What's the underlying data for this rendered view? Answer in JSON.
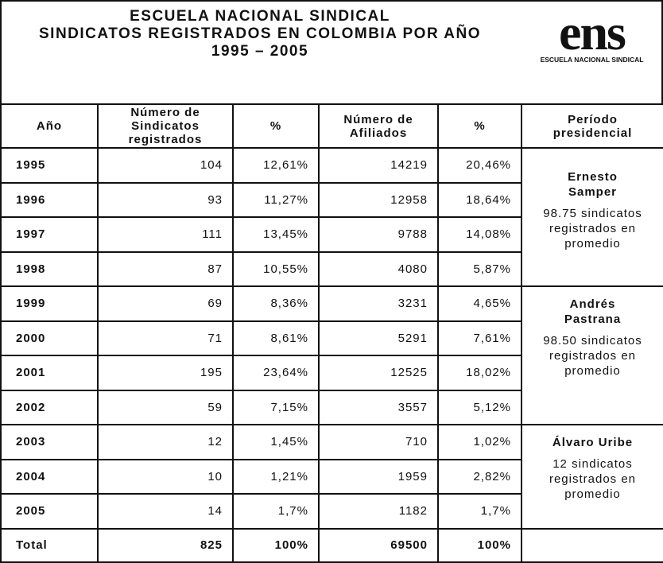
{
  "header": {
    "title": [
      "ESCUELA NACIONAL SINDICAL",
      "SINDICATOS REGISTRADOS EN COLOMBIA POR AÑO",
      "1995 – 2005"
    ],
    "logo": {
      "mark": "ens",
      "text": "ESCUELA NACIONAL SINDICAL"
    }
  },
  "table": {
    "columns": [
      [
        "Año"
      ],
      [
        "Número de",
        "Sindicatos",
        "registrados"
      ],
      [
        "%"
      ],
      [
        "Número de",
        "Afiliados"
      ],
      [
        "%"
      ],
      [
        "Período",
        "presidencial"
      ]
    ],
    "rows": [
      [
        "1995",
        "104",
        "12,61%",
        "14219",
        "20,46%"
      ],
      [
        "1996",
        "93",
        "11,27%",
        "12958",
        "18,64%"
      ],
      [
        "1997",
        "111",
        "13,45%",
        "9788",
        "14,08%"
      ],
      [
        "1998",
        "87",
        "10,55%",
        "4080",
        "5,87%"
      ],
      [
        "1999",
        "69",
        "8,36%",
        "3231",
        "4,65%"
      ],
      [
        "2000",
        "71",
        "8,61%",
        "5291",
        "7,61%"
      ],
      [
        "2001",
        "195",
        "23,64%",
        "12525",
        "18,02%"
      ],
      [
        "2002",
        "59",
        "7,15%",
        "3557",
        "5,12%"
      ],
      [
        "2003",
        "12",
        "1,45%",
        "710",
        "1,02%"
      ],
      [
        "2004",
        "10",
        "1,21%",
        "1959",
        "2,82%"
      ],
      [
        "2005",
        "14",
        "1,7%",
        "1182",
        "1,7%"
      ]
    ],
    "total": [
      "Total",
      "825",
      "100%",
      "69500",
      "100%"
    ],
    "periods": [
      {
        "name": [
          "Ernesto",
          "Samper"
        ],
        "note": [
          "98.75 sindicatos",
          "registrados en",
          "promedio"
        ],
        "rows": 4
      },
      {
        "name": [
          "Andrés",
          "Pastrana"
        ],
        "note": [
          "98.50 sindicatos",
          "registrados en",
          "promedio"
        ],
        "rows": 4
      },
      {
        "name": [
          "Álvaro Uribe"
        ],
        "note": [
          "12 sindicatos",
          "registrados en",
          "promedio"
        ],
        "rows": 3
      }
    ]
  }
}
